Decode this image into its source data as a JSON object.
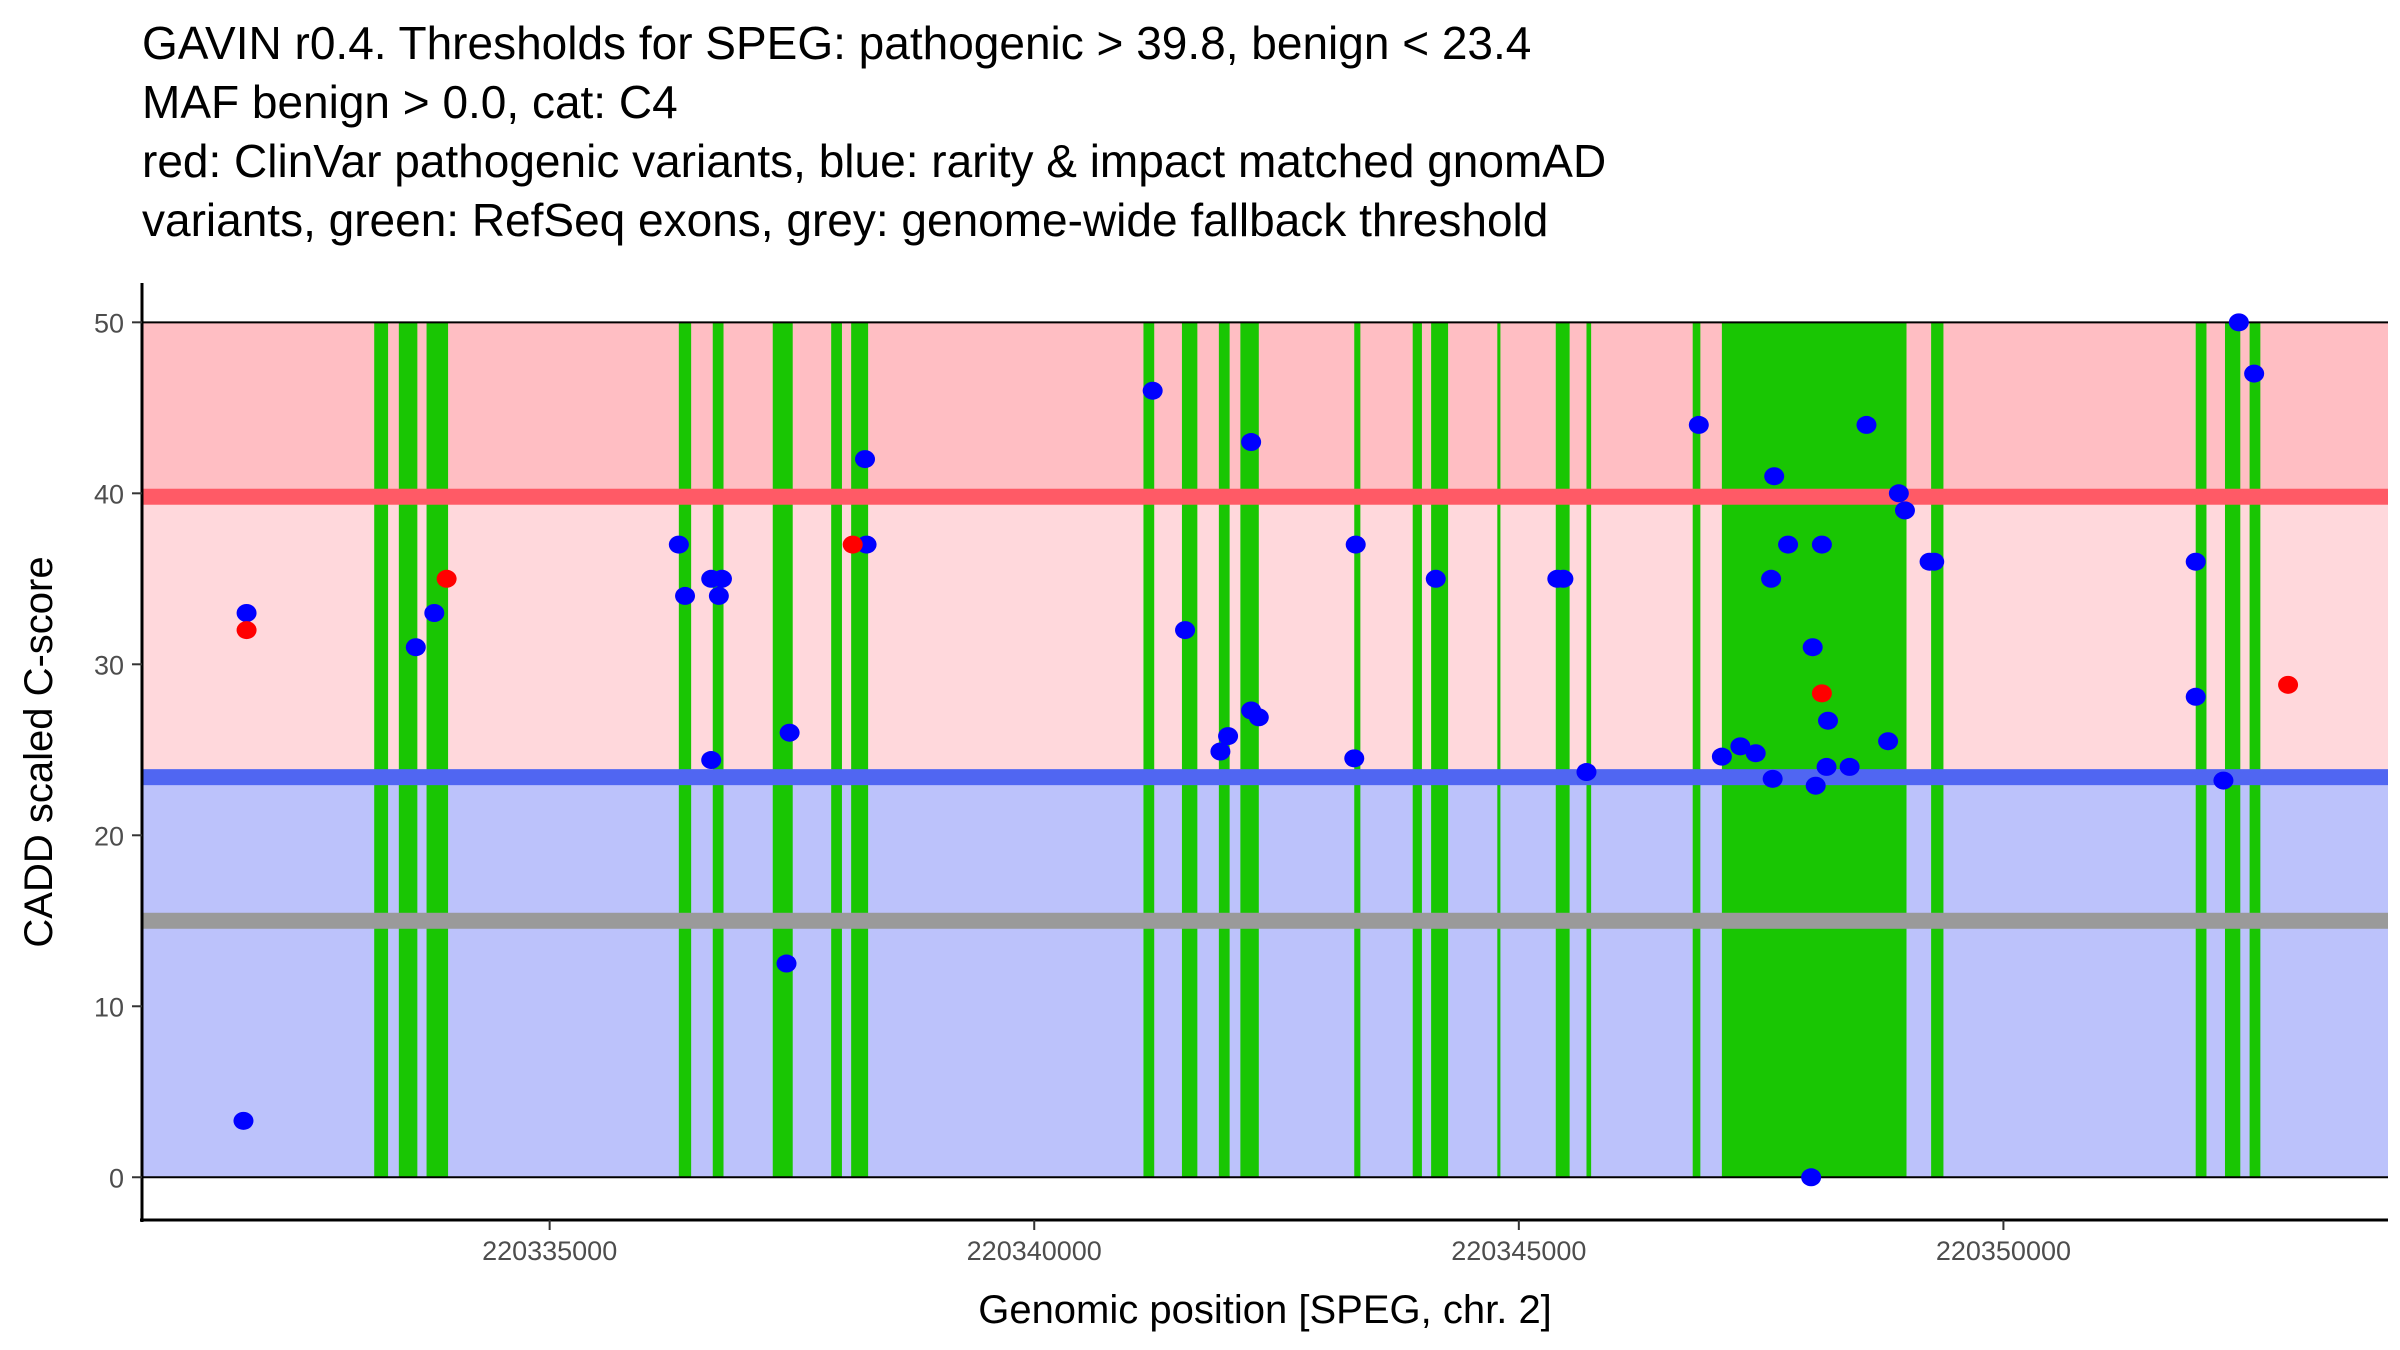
{
  "chart_data": {
    "type": "scatter",
    "title": [
      "GAVIN r0.4. Thresholds for SPEG: pathogenic > 39.8, benign < 23.4",
      "MAF benign > 0.0, cat: C4",
      "red: ClinVar pathogenic variants, blue: rarity & impact matched gnomAD",
      "variants, green: RefSeq exons, grey: genome-wide fallback threshold"
    ],
    "xlabel": "Genomic position [SPEG, chr. 2]",
    "ylabel": "CADD scaled C-score",
    "xlim": [
      220330794,
      220353968
    ],
    "ylim": [
      -2.5,
      52.3
    ],
    "xticks": [
      220335000,
      220340000,
      220345000,
      220350000
    ],
    "xtick_labels": [
      "220335000",
      "220340000",
      "220345000",
      "220350000"
    ],
    "yticks": [
      0,
      10,
      20,
      30,
      40,
      50
    ],
    "ytick_labels": [
      "0",
      "10",
      "20",
      "30",
      "40",
      "50"
    ],
    "grid": false,
    "thresholds": {
      "pathogenic": 39.8,
      "benign": 23.4,
      "fallback": 15,
      "max": 50
    },
    "colors": {
      "pathogenic_band": "#FFBEC3",
      "middle_band": "#FFD8DC",
      "benign_band": "#BCC2FB",
      "pathogenic_line": "#FF5A66",
      "benign_line": "#5066F2",
      "fallback_line": "#9A9A9A",
      "exon": "#19C603",
      "clinvar": "#FF0000",
      "gnomad": "#0000FF"
    },
    "exons": [
      [
        220333190,
        220333333
      ],
      [
        220333444,
        220333635
      ],
      [
        220333730,
        220333952
      ],
      [
        220336333,
        220336460
      ],
      [
        220336683,
        220336794
      ],
      [
        220337302,
        220337508
      ],
      [
        220337905,
        220338016
      ],
      [
        220338111,
        220338286
      ],
      [
        220341127,
        220341238
      ],
      [
        220341524,
        220341683
      ],
      [
        220341905,
        220342016
      ],
      [
        220342127,
        220342317
      ],
      [
        220343302,
        220343365
      ],
      [
        220343905,
        220344000
      ],
      [
        220344095,
        220344270
      ],
      [
        220344778,
        220344810
      ],
      [
        220345381,
        220345524
      ],
      [
        220345698,
        220345746
      ],
      [
        220346794,
        220346873
      ],
      [
        220347095,
        220349000
      ],
      [
        220349254,
        220349381
      ],
      [
        220351984,
        220352095
      ],
      [
        220352286,
        220352444
      ],
      [
        220352540,
        220352651
      ]
    ],
    "series": [
      {
        "name": "gnomAD",
        "points": [
          [
            220331873,
            33
          ],
          [
            220331841,
            3.3
          ],
          [
            220333619,
            31
          ],
          [
            220333810,
            33
          ],
          [
            220336333,
            37
          ],
          [
            220336397,
            34
          ],
          [
            220336667,
            35
          ],
          [
            220336778,
            35
          ],
          [
            220336746,
            34
          ],
          [
            220336667,
            24.4
          ],
          [
            220337476,
            26
          ],
          [
            220337444,
            12.5
          ],
          [
            220338254,
            42
          ],
          [
            220338270,
            37
          ],
          [
            220341222,
            46
          ],
          [
            220341556,
            32
          ],
          [
            220341921,
            24.9
          ],
          [
            220342000,
            25.8
          ],
          [
            220342238,
            43
          ],
          [
            220342238,
            27.3
          ],
          [
            220342317,
            26.9
          ],
          [
            220343317,
            37
          ],
          [
            220343302,
            24.5
          ],
          [
            220344143,
            35
          ],
          [
            220345397,
            35
          ],
          [
            220345460,
            35
          ],
          [
            220345698,
            23.7
          ],
          [
            220346857,
            44
          ],
          [
            220347095,
            24.6
          ],
          [
            220347286,
            25.2
          ],
          [
            220347444,
            24.8
          ],
          [
            220347635,
            41
          ],
          [
            220347603,
            35
          ],
          [
            220347619,
            23.3
          ],
          [
            220347778,
            37
          ],
          [
            220348127,
            37
          ],
          [
            220348032,
            31
          ],
          [
            220348063,
            22.9
          ],
          [
            220348016,
            0
          ],
          [
            220348190,
            26.7
          ],
          [
            220348175,
            24.0
          ],
          [
            220348413,
            24.0
          ],
          [
            220348587,
            44
          ],
          [
            220348810,
            25.5
          ],
          [
            220348921,
            40
          ],
          [
            220348984,
            39
          ],
          [
            220349238,
            36
          ],
          [
            220349286,
            36
          ],
          [
            220351984,
            36
          ],
          [
            220351984,
            28.1
          ],
          [
            220352270,
            23.2
          ],
          [
            220352429,
            50
          ],
          [
            220352587,
            47
          ]
        ]
      },
      {
        "name": "ClinVar",
        "points": [
          [
            220331873,
            32
          ],
          [
            220333937,
            35
          ],
          [
            220338127,
            37
          ],
          [
            220348127,
            28.3
          ],
          [
            220352937,
            28.8
          ]
        ]
      }
    ]
  }
}
